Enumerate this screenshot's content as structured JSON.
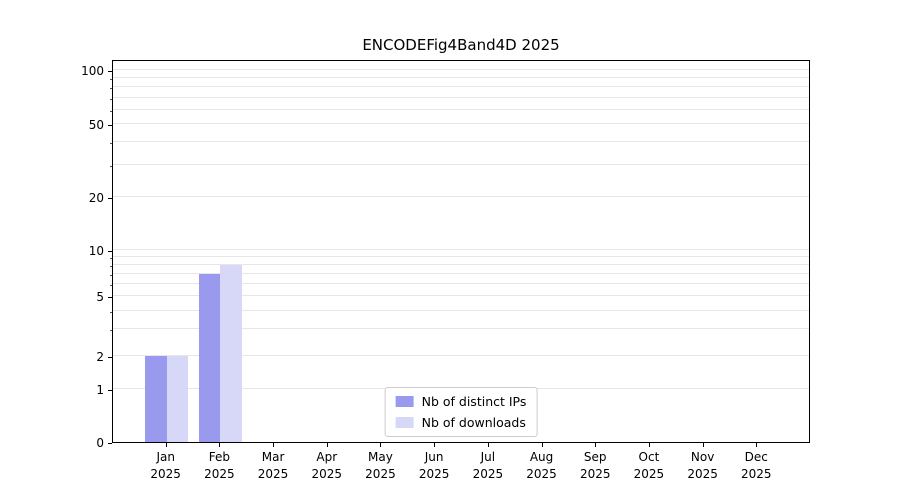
{
  "chart_data": {
    "type": "bar",
    "title": "ENCODEFig4Band4D 2025",
    "categories": [
      "Jan",
      "Feb",
      "Mar",
      "Apr",
      "May",
      "Jun",
      "Jul",
      "Aug",
      "Sep",
      "Oct",
      "Nov",
      "Dec"
    ],
    "category_year": "2025",
    "series": [
      {
        "name": "Nb of distinct IPs",
        "color": "#9999ee",
        "values": [
          2,
          7,
          0,
          0,
          0,
          0,
          0,
          0,
          0,
          0,
          0,
          0
        ]
      },
      {
        "name": "Nb of downloads",
        "color": "#d7d7f8",
        "values": [
          2,
          8,
          0,
          0,
          0,
          0,
          0,
          0,
          0,
          0,
          0,
          0
        ]
      }
    ],
    "yticks": [
      0,
      1,
      2,
      5,
      10,
      20,
      50,
      100
    ],
    "ylim": [
      0,
      110
    ],
    "yscale": "symlog",
    "grid": true,
    "legend": {
      "position": "lower center",
      "entries": [
        "Nb of distinct IPs",
        "Nb of downloads"
      ]
    }
  }
}
